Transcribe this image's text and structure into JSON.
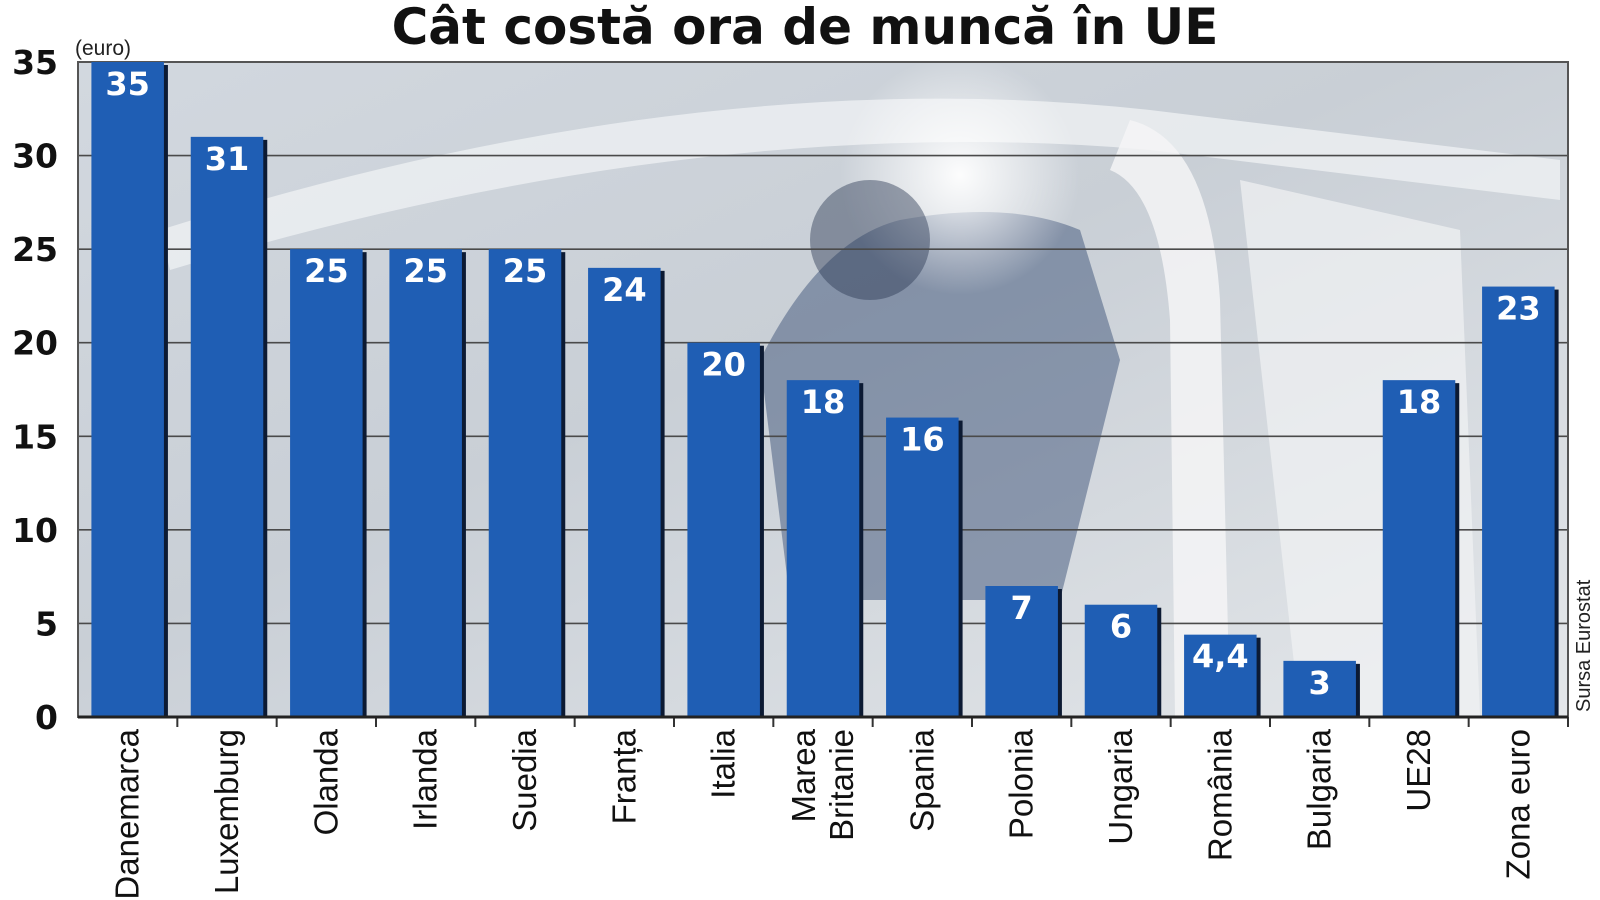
{
  "chart_data": {
    "type": "bar",
    "title": "Cât costă ora de muncă în UE",
    "unit": "(euro)",
    "source": "Sursa Eurostat",
    "categories": [
      [
        "Danemarca"
      ],
      [
        "Luxemburg"
      ],
      [
        "Olanda"
      ],
      [
        "Irlanda"
      ],
      [
        "Suedia"
      ],
      [
        "Franța"
      ],
      [
        "Italia"
      ],
      [
        "Marea",
        "Britanie"
      ],
      [
        "Spania"
      ],
      [
        "Polonia"
      ],
      [
        "Ungaria"
      ],
      [
        "România"
      ],
      [
        "Bulgaria"
      ],
      [
        "UE28"
      ],
      [
        "Zona euro"
      ]
    ],
    "values": [
      35,
      31,
      25,
      25,
      25,
      24,
      20,
      18,
      16,
      7,
      6,
      4.4,
      3,
      18,
      23
    ],
    "value_labels": [
      "35",
      "31",
      "25",
      "25",
      "25",
      "24",
      "20",
      "18",
      "16",
      "7",
      "6",
      "4,4",
      "3",
      "18",
      "23"
    ],
    "ylim": [
      0,
      35
    ],
    "yticks": [
      "0",
      "5",
      "10",
      "15",
      "20",
      "25",
      "30",
      "35"
    ],
    "grid": true,
    "bar_color": "#1f5eb4",
    "bar_shadow_color": "#0c1a33"
  }
}
